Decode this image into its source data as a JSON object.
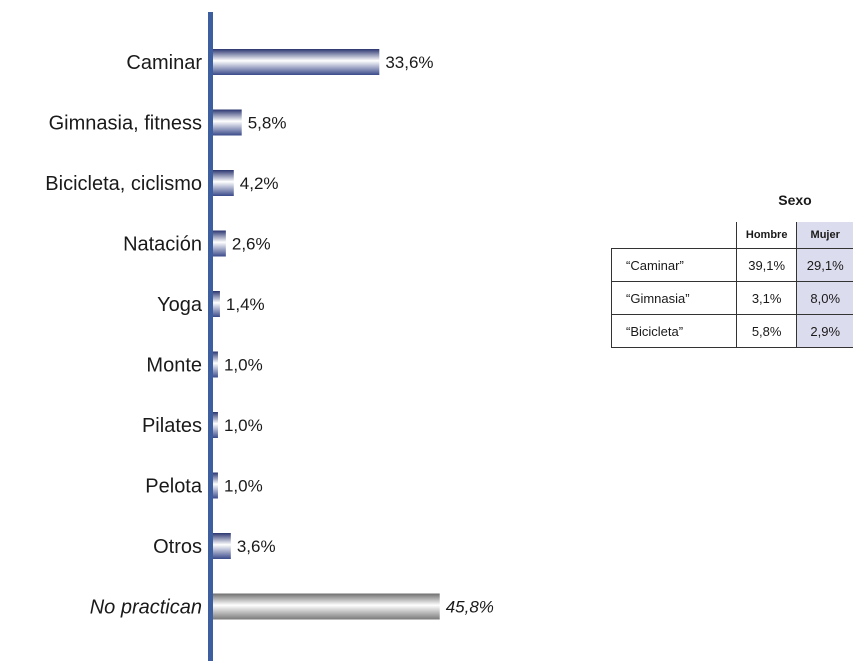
{
  "chart_data": {
    "type": "bar",
    "orientation": "horizontal",
    "categories": [
      "Caminar",
      "Gimnasia, fitness",
      "Bicicleta, ciclismo",
      "Natación",
      "Yoga",
      "Monte",
      "Pilates",
      "Pelota",
      "Otros",
      "No practican"
    ],
    "values": [
      33.6,
      5.8,
      4.2,
      2.6,
      1.4,
      1.0,
      1.0,
      1.0,
      3.6,
      45.8
    ],
    "value_labels": [
      "33,6%",
      "5,8%",
      "4,2%",
      "2,6%",
      "1,4%",
      "1,0%",
      "1,0%",
      "1,0%",
      "3,6%",
      "45,8%"
    ],
    "highlight_category": "No practican",
    "colors": {
      "bar": "#3a4a8a",
      "highlight": "#8a8a8a",
      "axis": "#3d5fa0"
    },
    "grid": false
  },
  "sexo_table": {
    "title": "Sexo",
    "columns": [
      "Hombre",
      "Mujer"
    ],
    "rows": [
      {
        "label": "“Caminar”",
        "hombre": "39,1%",
        "mujer": "29,1%"
      },
      {
        "label": "“Gimnasia”",
        "hombre": "3,1%",
        "mujer": "8,0%"
      },
      {
        "label": "“Bicicleta”",
        "hombre": "5,8%",
        "mujer": "2,9%"
      }
    ]
  }
}
